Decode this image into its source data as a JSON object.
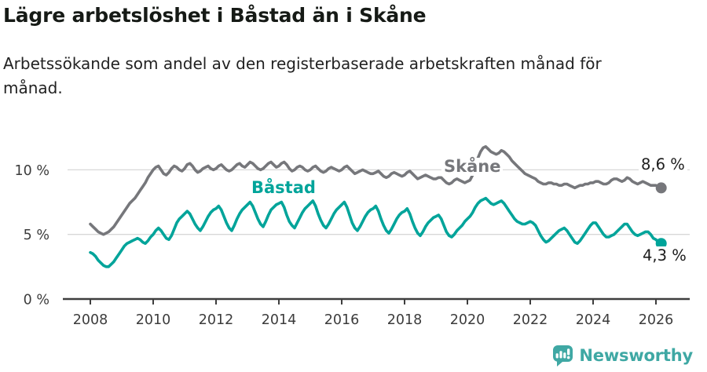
{
  "title": "Lägre arbetslöshet i Båstad än i Skåne",
  "subtitle": "Arbetssökande som andel av den registerbaserade arbetskraften månad för månad.",
  "footer": {
    "brand": "Newsworthy",
    "logo_icon": "bar-chart-speech-bubble-icon"
  },
  "colors": {
    "skane": "#76777b",
    "bastad": "#00a49a",
    "grid": "#d8d8d8",
    "axis": "#3e3e3e",
    "axis_text": "#3c3c3c",
    "value_label": "#1c1c1c",
    "logo": "#3fa8a4"
  },
  "chart_data": {
    "type": "line",
    "title": "Lägre arbetslöshet i Båstad än i Skåne",
    "subtitle": "Arbetssökande som andel av den registerbaserade arbetskraften månad för månad.",
    "unit": "%",
    "frequency": "monthly",
    "x_start": "2008-01",
    "x_end": "2026-03",
    "points_per_year": 12,
    "ylim": [
      0,
      12.5
    ],
    "grid": "horizontal only at 5% and 10%",
    "legend_position": "inline labels on lines",
    "x_ticks": [
      "2008",
      "2010",
      "2012",
      "2014",
      "2016",
      "2018",
      "2020",
      "2022",
      "2024",
      "2026"
    ],
    "y_ticks": [
      "0 %",
      "5 %",
      "10 %"
    ],
    "series": [
      {
        "name": "Skåne",
        "color": "#76777b",
        "end_label": "8,6 %",
        "last_value": 8.6,
        "values": [
          5.8,
          5.6,
          5.4,
          5.2,
          5.1,
          5.0,
          5.1,
          5.2,
          5.4,
          5.6,
          5.9,
          6.2,
          6.5,
          6.8,
          7.1,
          7.4,
          7.6,
          7.8,
          8.1,
          8.4,
          8.7,
          9.0,
          9.4,
          9.7,
          10.0,
          10.2,
          10.3,
          10.0,
          9.7,
          9.6,
          9.8,
          10.1,
          10.3,
          10.2,
          10.0,
          9.9,
          10.1,
          10.4,
          10.5,
          10.3,
          10.0,
          9.8,
          9.9,
          10.1,
          10.2,
          10.3,
          10.1,
          10.0,
          10.1,
          10.3,
          10.4,
          10.2,
          10.0,
          9.9,
          10.0,
          10.2,
          10.4,
          10.5,
          10.3,
          10.2,
          10.4,
          10.6,
          10.5,
          10.3,
          10.1,
          10.0,
          10.1,
          10.3,
          10.5,
          10.6,
          10.4,
          10.2,
          10.3,
          10.5,
          10.6,
          10.4,
          10.1,
          9.9,
          10.0,
          10.2,
          10.3,
          10.2,
          10.0,
          9.9,
          10.0,
          10.2,
          10.3,
          10.1,
          9.9,
          9.8,
          9.9,
          10.1,
          10.2,
          10.1,
          10.0,
          9.9,
          10.0,
          10.2,
          10.3,
          10.1,
          9.9,
          9.7,
          9.8,
          9.9,
          10.0,
          9.9,
          9.8,
          9.7,
          9.7,
          9.8,
          9.9,
          9.7,
          9.5,
          9.4,
          9.5,
          9.7,
          9.8,
          9.7,
          9.6,
          9.5,
          9.6,
          9.8,
          9.9,
          9.7,
          9.5,
          9.3,
          9.4,
          9.5,
          9.6,
          9.5,
          9.4,
          9.3,
          9.3,
          9.4,
          9.4,
          9.2,
          9.0,
          8.9,
          9.0,
          9.2,
          9.3,
          9.2,
          9.1,
          9.0,
          9.1,
          9.2,
          9.6,
          10.3,
          10.9,
          11.4,
          11.7,
          11.8,
          11.6,
          11.4,
          11.3,
          11.2,
          11.3,
          11.5,
          11.4,
          11.2,
          11.0,
          10.7,
          10.5,
          10.3,
          10.1,
          9.9,
          9.7,
          9.6,
          9.5,
          9.4,
          9.3,
          9.1,
          9.0,
          8.9,
          8.9,
          9.0,
          9.0,
          8.9,
          8.9,
          8.8,
          8.8,
          8.9,
          8.9,
          8.8,
          8.7,
          8.6,
          8.7,
          8.8,
          8.8,
          8.9,
          8.9,
          9.0,
          9.0,
          9.1,
          9.1,
          9.0,
          8.9,
          8.9,
          9.0,
          9.2,
          9.3,
          9.3,
          9.2,
          9.1,
          9.2,
          9.4,
          9.3,
          9.1,
          9.0,
          8.9,
          9.0,
          9.1,
          9.0,
          8.9,
          8.8,
          8.8,
          8.8,
          8.7,
          8.6
        ]
      },
      {
        "name": "Båstad",
        "color": "#00a49a",
        "end_label": "4,3 %",
        "last_value": 4.3,
        "values": [
          3.6,
          3.5,
          3.3,
          3.0,
          2.8,
          2.6,
          2.5,
          2.5,
          2.7,
          2.9,
          3.2,
          3.5,
          3.8,
          4.1,
          4.3,
          4.4,
          4.5,
          4.6,
          4.7,
          4.6,
          4.4,
          4.3,
          4.5,
          4.8,
          5.0,
          5.3,
          5.5,
          5.3,
          5.0,
          4.7,
          4.6,
          4.9,
          5.4,
          5.9,
          6.2,
          6.4,
          6.6,
          6.8,
          6.6,
          6.2,
          5.8,
          5.5,
          5.3,
          5.6,
          6.0,
          6.4,
          6.7,
          6.9,
          7.0,
          7.2,
          6.9,
          6.4,
          5.9,
          5.5,
          5.3,
          5.7,
          6.2,
          6.6,
          6.9,
          7.1,
          7.3,
          7.5,
          7.2,
          6.7,
          6.2,
          5.8,
          5.6,
          6.0,
          6.5,
          6.9,
          7.1,
          7.3,
          7.4,
          7.5,
          7.1,
          6.5,
          6.0,
          5.7,
          5.5,
          5.9,
          6.3,
          6.7,
          7.0,
          7.2,
          7.4,
          7.6,
          7.2,
          6.6,
          6.1,
          5.7,
          5.5,
          5.8,
          6.2,
          6.6,
          6.9,
          7.1,
          7.3,
          7.5,
          7.1,
          6.5,
          5.9,
          5.5,
          5.3,
          5.6,
          6.0,
          6.4,
          6.7,
          6.9,
          7.0,
          7.2,
          6.8,
          6.2,
          5.7,
          5.3,
          5.1,
          5.4,
          5.8,
          6.2,
          6.5,
          6.7,
          6.8,
          7.0,
          6.6,
          6.0,
          5.5,
          5.1,
          4.9,
          5.2,
          5.6,
          5.9,
          6.1,
          6.3,
          6.4,
          6.5,
          6.2,
          5.7,
          5.2,
          4.9,
          4.8,
          5.0,
          5.3,
          5.5,
          5.7,
          6.0,
          6.2,
          6.4,
          6.7,
          7.1,
          7.4,
          7.6,
          7.7,
          7.8,
          7.6,
          7.4,
          7.3,
          7.4,
          7.5,
          7.6,
          7.4,
          7.1,
          6.8,
          6.5,
          6.2,
          6.0,
          5.9,
          5.8,
          5.8,
          5.9,
          6.0,
          5.9,
          5.7,
          5.3,
          4.9,
          4.6,
          4.4,
          4.5,
          4.7,
          4.9,
          5.1,
          5.3,
          5.4,
          5.5,
          5.3,
          5.0,
          4.7,
          4.4,
          4.3,
          4.5,
          4.8,
          5.1,
          5.4,
          5.7,
          5.9,
          5.9,
          5.6,
          5.3,
          5.0,
          4.8,
          4.8,
          4.9,
          5.0,
          5.2,
          5.4,
          5.6,
          5.8,
          5.8,
          5.5,
          5.2,
          5.0,
          4.9,
          5.0,
          5.1,
          5.2,
          5.2,
          5.0,
          4.7,
          4.6,
          4.4,
          4.3
        ]
      }
    ]
  }
}
